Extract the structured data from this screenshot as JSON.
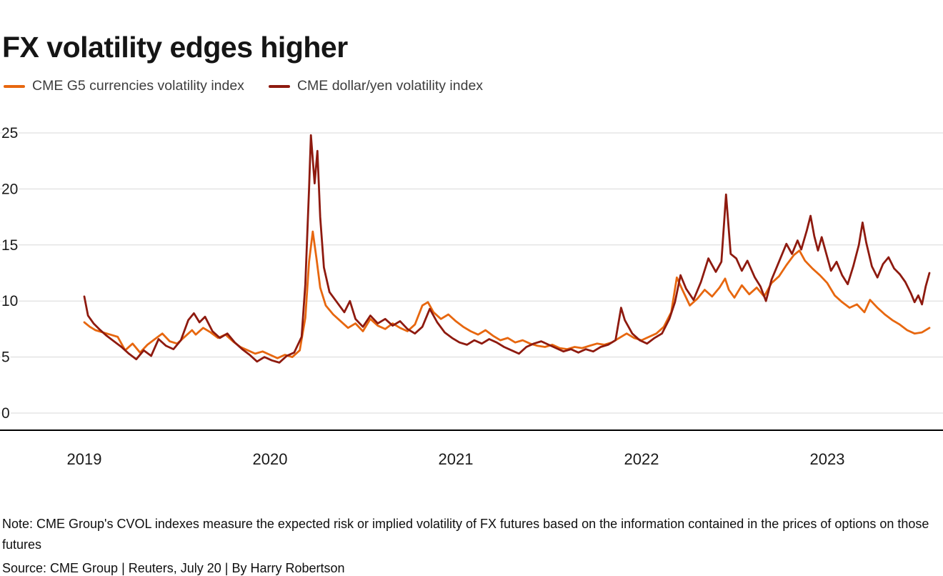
{
  "header": {
    "title": "FX volatility edges higher"
  },
  "legend": [
    {
      "label": "CME G5 currencies volatility index",
      "color": "#e7670f"
    },
    {
      "label": "CME dollar/yen volatility index",
      "color": "#8e1a0f"
    }
  ],
  "footer": {
    "note": "Note: CME Group's CVOL indexes measure the expected risk or implied volatility of FX futures based on the information contained in the prices of options on those futures",
    "source": "Source: CME Group | Reuters, July 20 | By Harry Robertson"
  },
  "chart_data": {
    "type": "line",
    "title": "FX volatility edges higher",
    "xlabel": "",
    "ylabel": "",
    "ylim": [
      0,
      25
    ],
    "y_ticks": [
      0,
      5,
      10,
      15,
      20,
      25
    ],
    "x_ticks": [
      2019,
      2020,
      2021,
      2022,
      2023
    ],
    "x_range": [
      2019.0,
      2023.55
    ],
    "grid": "horizontal",
    "legend_position": "top",
    "series": [
      {
        "name": "CME G5 currencies volatility index",
        "color": "#e7670f",
        "points": [
          [
            2019.0,
            8.1
          ],
          [
            2019.03,
            7.7
          ],
          [
            2019.06,
            7.4
          ],
          [
            2019.1,
            7.2
          ],
          [
            2019.14,
            7.0
          ],
          [
            2019.18,
            6.8
          ],
          [
            2019.22,
            5.6
          ],
          [
            2019.26,
            6.2
          ],
          [
            2019.3,
            5.4
          ],
          [
            2019.34,
            6.1
          ],
          [
            2019.38,
            6.6
          ],
          [
            2019.42,
            7.1
          ],
          [
            2019.46,
            6.4
          ],
          [
            2019.5,
            6.2
          ],
          [
            2019.54,
            6.8
          ],
          [
            2019.58,
            7.4
          ],
          [
            2019.6,
            7.0
          ],
          [
            2019.64,
            7.6
          ],
          [
            2019.68,
            7.2
          ],
          [
            2019.72,
            6.7
          ],
          [
            2019.76,
            7.0
          ],
          [
            2019.8,
            6.4
          ],
          [
            2019.84,
            5.9
          ],
          [
            2019.88,
            5.6
          ],
          [
            2019.92,
            5.3
          ],
          [
            2019.96,
            5.5
          ],
          [
            2020.0,
            5.2
          ],
          [
            2020.04,
            4.9
          ],
          [
            2020.08,
            5.2
          ],
          [
            2020.12,
            5.0
          ],
          [
            2020.16,
            5.6
          ],
          [
            2020.19,
            8.5
          ],
          [
            2020.21,
            13.5
          ],
          [
            2020.23,
            16.2
          ],
          [
            2020.25,
            13.8
          ],
          [
            2020.27,
            11.2
          ],
          [
            2020.3,
            9.6
          ],
          [
            2020.34,
            8.8
          ],
          [
            2020.38,
            8.2
          ],
          [
            2020.42,
            7.6
          ],
          [
            2020.46,
            8.0
          ],
          [
            2020.5,
            7.3
          ],
          [
            2020.54,
            8.4
          ],
          [
            2020.58,
            7.8
          ],
          [
            2020.62,
            7.5
          ],
          [
            2020.66,
            8.0
          ],
          [
            2020.7,
            7.6
          ],
          [
            2020.74,
            7.3
          ],
          [
            2020.78,
            7.9
          ],
          [
            2020.82,
            9.6
          ],
          [
            2020.85,
            9.9
          ],
          [
            2020.88,
            9.0
          ],
          [
            2020.92,
            8.4
          ],
          [
            2020.96,
            8.8
          ],
          [
            2021.0,
            8.2
          ],
          [
            2021.04,
            7.7
          ],
          [
            2021.08,
            7.3
          ],
          [
            2021.12,
            7.0
          ],
          [
            2021.16,
            7.4
          ],
          [
            2021.2,
            6.9
          ],
          [
            2021.24,
            6.5
          ],
          [
            2021.28,
            6.7
          ],
          [
            2021.32,
            6.3
          ],
          [
            2021.36,
            6.5
          ],
          [
            2021.4,
            6.2
          ],
          [
            2021.44,
            6.0
          ],
          [
            2021.48,
            5.9
          ],
          [
            2021.52,
            6.1
          ],
          [
            2021.56,
            5.8
          ],
          [
            2021.6,
            5.7
          ],
          [
            2021.64,
            5.9
          ],
          [
            2021.68,
            5.8
          ],
          [
            2021.72,
            6.0
          ],
          [
            2021.76,
            6.2
          ],
          [
            2021.8,
            6.1
          ],
          [
            2021.84,
            6.3
          ],
          [
            2021.88,
            6.7
          ],
          [
            2021.92,
            7.1
          ],
          [
            2021.96,
            6.7
          ],
          [
            2022.0,
            6.5
          ],
          [
            2022.04,
            6.8
          ],
          [
            2022.08,
            7.1
          ],
          [
            2022.12,
            7.7
          ],
          [
            2022.16,
            9.0
          ],
          [
            2022.19,
            12.1
          ],
          [
            2022.22,
            11.0
          ],
          [
            2022.26,
            9.6
          ],
          [
            2022.3,
            10.2
          ],
          [
            2022.34,
            11.0
          ],
          [
            2022.38,
            10.4
          ],
          [
            2022.42,
            11.2
          ],
          [
            2022.45,
            12.0
          ],
          [
            2022.47,
            11.0
          ],
          [
            2022.5,
            10.3
          ],
          [
            2022.54,
            11.4
          ],
          [
            2022.58,
            10.6
          ],
          [
            2022.62,
            11.2
          ],
          [
            2022.66,
            10.4
          ],
          [
            2022.7,
            11.6
          ],
          [
            2022.74,
            12.2
          ],
          [
            2022.78,
            13.2
          ],
          [
            2022.82,
            14.1
          ],
          [
            2022.85,
            14.5
          ],
          [
            2022.88,
            13.6
          ],
          [
            2022.92,
            12.9
          ],
          [
            2022.96,
            12.3
          ],
          [
            2023.0,
            11.6
          ],
          [
            2023.04,
            10.5
          ],
          [
            2023.08,
            9.9
          ],
          [
            2023.12,
            9.4
          ],
          [
            2023.16,
            9.7
          ],
          [
            2023.2,
            9.0
          ],
          [
            2023.23,
            10.1
          ],
          [
            2023.27,
            9.4
          ],
          [
            2023.31,
            8.8
          ],
          [
            2023.35,
            8.3
          ],
          [
            2023.39,
            7.9
          ],
          [
            2023.43,
            7.4
          ],
          [
            2023.47,
            7.1
          ],
          [
            2023.51,
            7.2
          ],
          [
            2023.55,
            7.6
          ]
        ]
      },
      {
        "name": "CME dollar/yen volatility index",
        "color": "#8e1a0f",
        "points": [
          [
            2019.0,
            10.4
          ],
          [
            2019.02,
            8.7
          ],
          [
            2019.05,
            8.0
          ],
          [
            2019.08,
            7.5
          ],
          [
            2019.12,
            6.9
          ],
          [
            2019.16,
            6.4
          ],
          [
            2019.2,
            5.9
          ],
          [
            2019.24,
            5.3
          ],
          [
            2019.28,
            4.8
          ],
          [
            2019.32,
            5.6
          ],
          [
            2019.36,
            5.1
          ],
          [
            2019.4,
            6.6
          ],
          [
            2019.44,
            6.0
          ],
          [
            2019.48,
            5.7
          ],
          [
            2019.52,
            6.5
          ],
          [
            2019.56,
            8.3
          ],
          [
            2019.59,
            8.9
          ],
          [
            2019.62,
            8.1
          ],
          [
            2019.65,
            8.6
          ],
          [
            2019.69,
            7.3
          ],
          [
            2019.73,
            6.7
          ],
          [
            2019.77,
            7.1
          ],
          [
            2019.81,
            6.3
          ],
          [
            2019.85,
            5.7
          ],
          [
            2019.89,
            5.2
          ],
          [
            2019.93,
            4.6
          ],
          [
            2019.97,
            5.0
          ],
          [
            2020.01,
            4.7
          ],
          [
            2020.05,
            4.5
          ],
          [
            2020.09,
            5.1
          ],
          [
            2020.13,
            5.4
          ],
          [
            2020.17,
            6.8
          ],
          [
            2020.19,
            11.5
          ],
          [
            2020.21,
            20.0
          ],
          [
            2020.22,
            24.8
          ],
          [
            2020.24,
            20.5
          ],
          [
            2020.255,
            23.4
          ],
          [
            2020.27,
            17.5
          ],
          [
            2020.29,
            13.0
          ],
          [
            2020.32,
            10.8
          ],
          [
            2020.36,
            9.9
          ],
          [
            2020.4,
            9.0
          ],
          [
            2020.43,
            10.0
          ],
          [
            2020.46,
            8.4
          ],
          [
            2020.5,
            7.7
          ],
          [
            2020.54,
            8.7
          ],
          [
            2020.58,
            8.0
          ],
          [
            2020.62,
            8.4
          ],
          [
            2020.66,
            7.8
          ],
          [
            2020.7,
            8.2
          ],
          [
            2020.74,
            7.5
          ],
          [
            2020.78,
            7.1
          ],
          [
            2020.82,
            7.7
          ],
          [
            2020.86,
            9.3
          ],
          [
            2020.9,
            8.1
          ],
          [
            2020.94,
            7.2
          ],
          [
            2020.98,
            6.7
          ],
          [
            2021.02,
            6.3
          ],
          [
            2021.06,
            6.1
          ],
          [
            2021.1,
            6.5
          ],
          [
            2021.14,
            6.2
          ],
          [
            2021.18,
            6.6
          ],
          [
            2021.22,
            6.3
          ],
          [
            2021.26,
            5.9
          ],
          [
            2021.3,
            5.6
          ],
          [
            2021.34,
            5.3
          ],
          [
            2021.38,
            5.9
          ],
          [
            2021.42,
            6.2
          ],
          [
            2021.46,
            6.4
          ],
          [
            2021.5,
            6.1
          ],
          [
            2021.54,
            5.8
          ],
          [
            2021.58,
            5.5
          ],
          [
            2021.62,
            5.7
          ],
          [
            2021.66,
            5.4
          ],
          [
            2021.7,
            5.7
          ],
          [
            2021.74,
            5.5
          ],
          [
            2021.78,
            5.9
          ],
          [
            2021.82,
            6.1
          ],
          [
            2021.86,
            6.5
          ],
          [
            2021.89,
            9.4
          ],
          [
            2021.91,
            8.3
          ],
          [
            2021.95,
            7.1
          ],
          [
            2021.99,
            6.5
          ],
          [
            2022.03,
            6.2
          ],
          [
            2022.07,
            6.7
          ],
          [
            2022.11,
            7.1
          ],
          [
            2022.15,
            8.4
          ],
          [
            2022.18,
            9.9
          ],
          [
            2022.21,
            12.3
          ],
          [
            2022.24,
            11.1
          ],
          [
            2022.28,
            10.1
          ],
          [
            2022.32,
            11.7
          ],
          [
            2022.36,
            13.8
          ],
          [
            2022.4,
            12.6
          ],
          [
            2022.43,
            13.5
          ],
          [
            2022.455,
            19.5
          ],
          [
            2022.48,
            14.2
          ],
          [
            2022.51,
            13.8
          ],
          [
            2022.54,
            12.7
          ],
          [
            2022.57,
            13.6
          ],
          [
            2022.61,
            12.1
          ],
          [
            2022.64,
            11.3
          ],
          [
            2022.67,
            10.0
          ],
          [
            2022.7,
            11.9
          ],
          [
            2022.74,
            13.5
          ],
          [
            2022.78,
            15.1
          ],
          [
            2022.81,
            14.2
          ],
          [
            2022.84,
            15.4
          ],
          [
            2022.86,
            14.6
          ],
          [
            2022.89,
            16.3
          ],
          [
            2022.91,
            17.6
          ],
          [
            2022.93,
            15.8
          ],
          [
            2022.95,
            14.5
          ],
          [
            2022.97,
            15.7
          ],
          [
            2023.0,
            13.9
          ],
          [
            2023.02,
            12.7
          ],
          [
            2023.05,
            13.5
          ],
          [
            2023.08,
            12.3
          ],
          [
            2023.11,
            11.5
          ],
          [
            2023.14,
            13.1
          ],
          [
            2023.17,
            15.0
          ],
          [
            2023.19,
            17.0
          ],
          [
            2023.21,
            15.2
          ],
          [
            2023.24,
            13.1
          ],
          [
            2023.27,
            12.1
          ],
          [
            2023.3,
            13.3
          ],
          [
            2023.33,
            13.9
          ],
          [
            2023.36,
            12.9
          ],
          [
            2023.39,
            12.4
          ],
          [
            2023.42,
            11.7
          ],
          [
            2023.45,
            10.7
          ],
          [
            2023.47,
            9.9
          ],
          [
            2023.49,
            10.5
          ],
          [
            2023.51,
            9.7
          ],
          [
            2023.53,
            11.3
          ],
          [
            2023.55,
            12.5
          ]
        ]
      }
    ]
  }
}
